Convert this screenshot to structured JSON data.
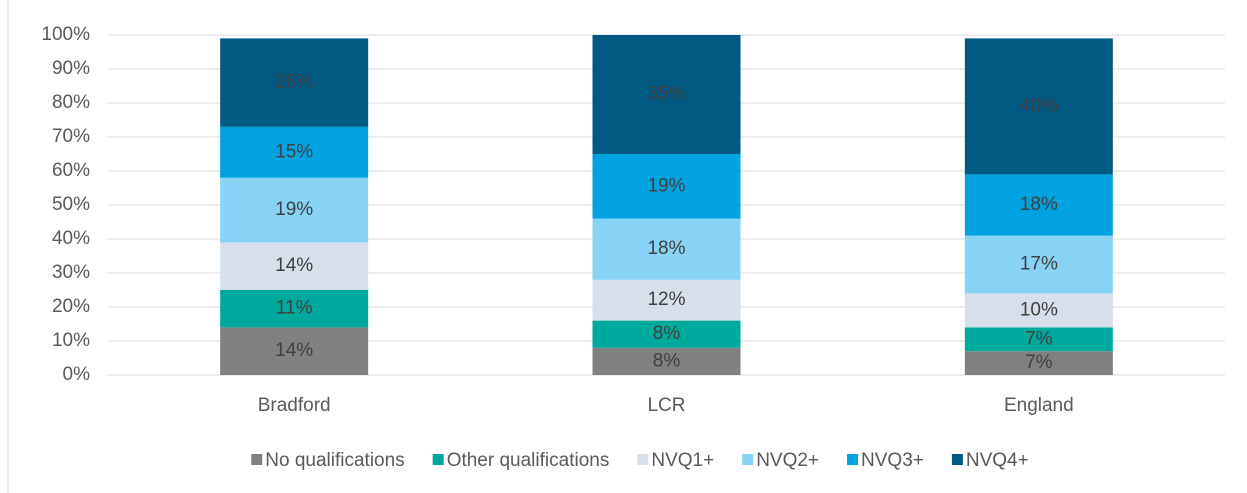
{
  "chart_data": {
    "type": "stacked_bar",
    "categories": [
      "Bradford",
      "LCR",
      "England"
    ],
    "series": [
      {
        "name": "No qualifications",
        "color": "#808080",
        "values": [
          14,
          8,
          7
        ],
        "value_labels": [
          "14%",
          "8%",
          "7%"
        ]
      },
      {
        "name": "Other qualifications",
        "color": "#00a99d",
        "values": [
          11,
          8,
          7
        ],
        "value_labels": [
          "11%",
          "8%",
          "7%"
        ]
      },
      {
        "name": "NVQ1+",
        "color": "#d6dfea",
        "values": [
          14,
          12,
          10
        ],
        "value_labels": [
          "14%",
          "12%",
          "10%"
        ]
      },
      {
        "name": "NVQ2+",
        "color": "#86d3f5",
        "values": [
          19,
          18,
          17
        ],
        "value_labels": [
          "19%",
          "18%",
          "17%"
        ]
      },
      {
        "name": "NVQ3+",
        "color": "#00a3e0",
        "values": [
          15,
          19,
          18
        ],
        "value_labels": [
          "15%",
          "19%",
          "18%"
        ]
      },
      {
        "name": "NVQ4+",
        "color": "#005a84",
        "values": [
          26,
          35,
          40
        ],
        "value_labels": [
          "26%",
          "35%",
          "40%"
        ]
      }
    ],
    "ylim": [
      0,
      100
    ],
    "yticks": [
      {
        "value": 0,
        "label": "0%"
      },
      {
        "value": 10,
        "label": "10%"
      },
      {
        "value": 20,
        "label": "20%"
      },
      {
        "value": 30,
        "label": "30%"
      },
      {
        "value": 40,
        "label": "40%"
      },
      {
        "value": 50,
        "label": "50%"
      },
      {
        "value": 60,
        "label": "60%"
      },
      {
        "value": 70,
        "label": "70%"
      },
      {
        "value": 80,
        "label": "80%"
      },
      {
        "value": 90,
        "label": "90%"
      },
      {
        "value": 100,
        "label": "100%"
      }
    ],
    "grid": true,
    "legend": "bottom"
  }
}
